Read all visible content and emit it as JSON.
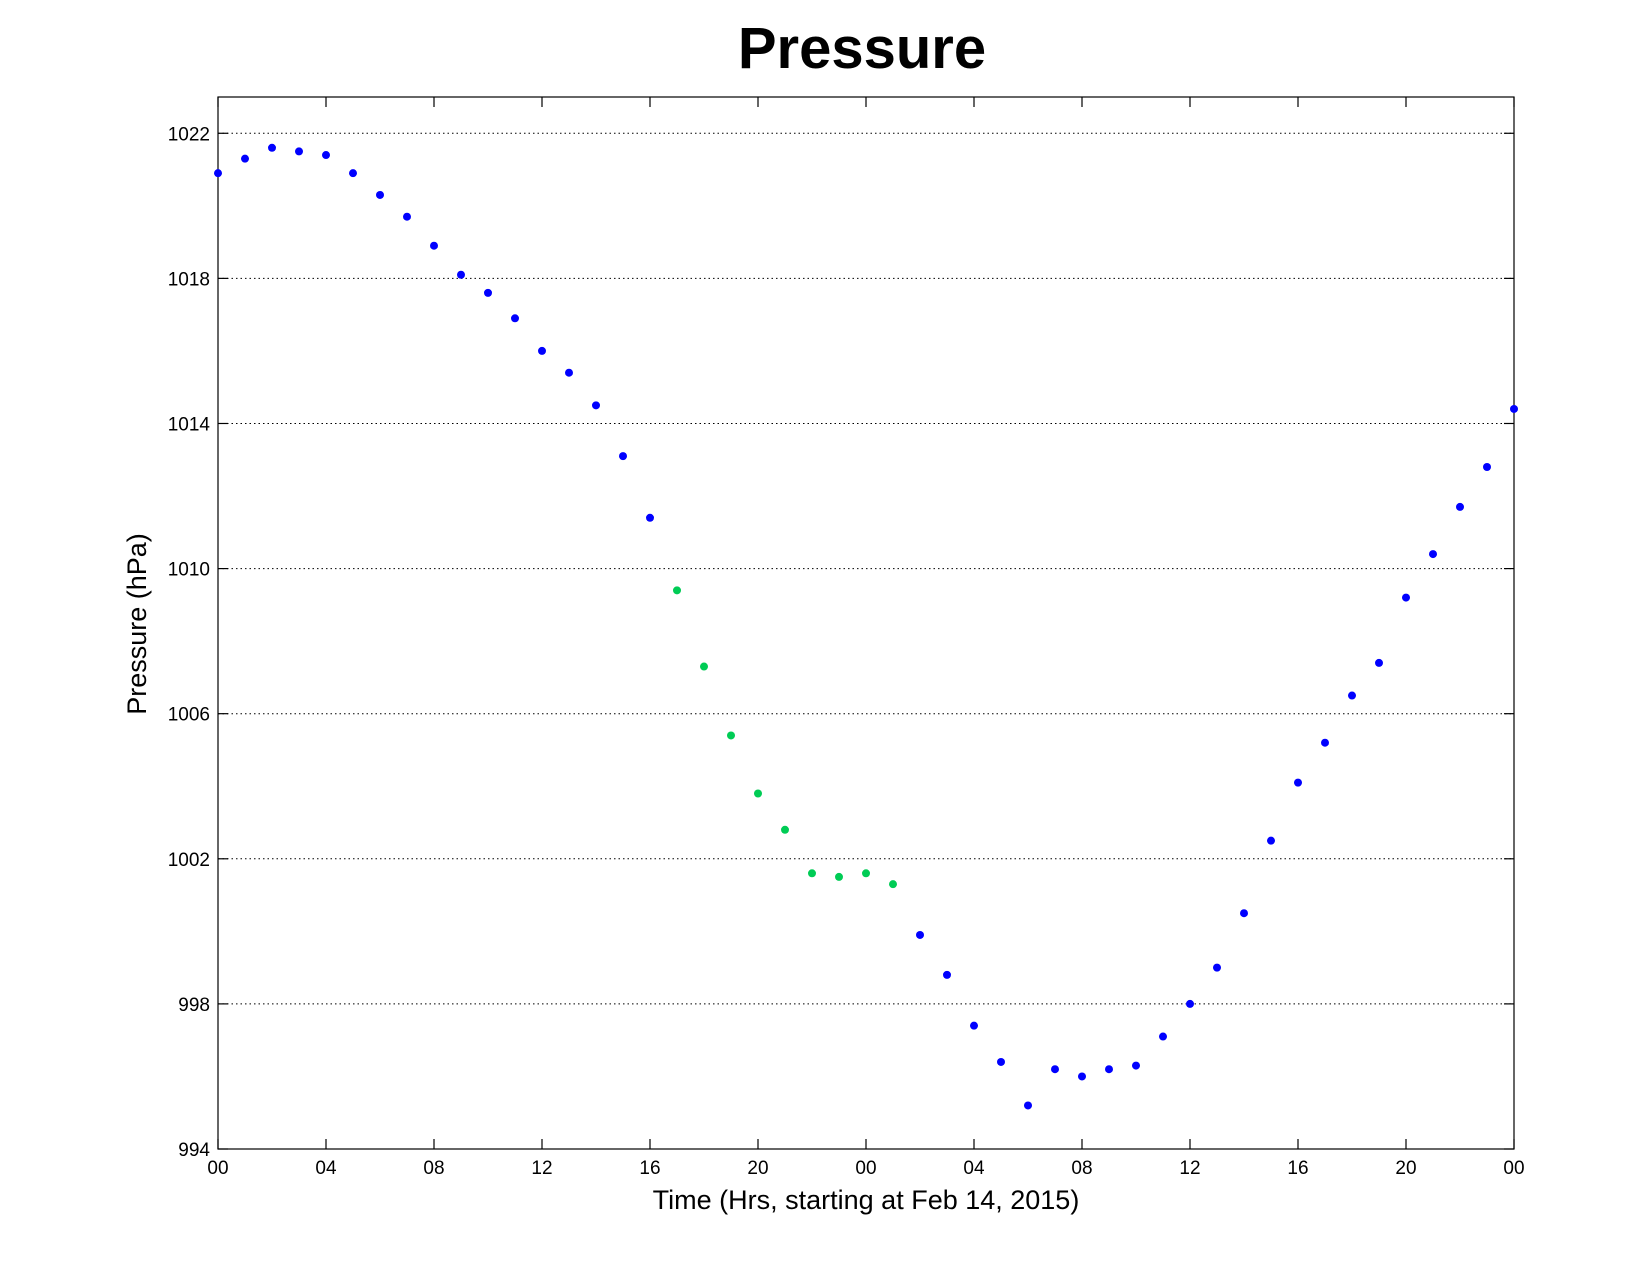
{
  "chart_data": {
    "type": "scatter",
    "title": "Pressure",
    "xlabel": "Time (Hrs, starting at Feb 14, 2015)",
    "ylabel": "Pressure (hPa)",
    "xlim": [
      0,
      48
    ],
    "ylim": [
      994,
      1023
    ],
    "x_ticks": [
      0,
      4,
      8,
      12,
      16,
      20,
      24,
      28,
      32,
      36,
      40,
      44,
      48
    ],
    "x_tick_labels": [
      "00",
      "04",
      "08",
      "12",
      "16",
      "20",
      "00",
      "04",
      "08",
      "12",
      "16",
      "20",
      "00"
    ],
    "y_ticks": [
      994,
      998,
      1002,
      1006,
      1010,
      1014,
      1018,
      1022
    ],
    "y_tick_labels": [
      "994",
      "998",
      "1002",
      "1006",
      "1010",
      "1014",
      "1018",
      "1022"
    ],
    "grid": "horizontal dotted",
    "colors": {
      "blue": "#0000ff",
      "green": "#00cc55"
    },
    "series": [
      {
        "color": "#0000ff",
        "x": [
          0,
          1,
          2,
          3,
          4,
          5,
          6,
          7,
          8,
          9,
          10,
          11,
          12,
          13,
          14,
          15,
          16,
          26,
          27,
          28,
          29,
          30,
          31,
          32,
          33,
          34,
          35,
          36,
          37,
          38,
          39,
          40,
          41,
          42,
          43,
          44,
          45,
          46,
          47,
          48
        ],
        "y": [
          1020.9,
          1021.3,
          1021.6,
          1021.5,
          1021.4,
          1020.9,
          1020.3,
          1019.7,
          1018.9,
          1018.1,
          1017.6,
          1016.9,
          1016.0,
          1015.4,
          1014.5,
          1013.1,
          1011.4,
          999.9,
          998.8,
          997.4,
          996.4,
          995.2,
          996.2,
          996.0,
          996.2,
          996.3,
          997.1,
          998.0,
          999.0,
          1000.5,
          1002.5,
          1004.1,
          1005.2,
          1006.5,
          1007.4,
          1009.2,
          1010.4,
          1011.7,
          1012.8,
          1014.4
        ]
      },
      {
        "color": "#00cc55",
        "x": [
          17,
          18,
          19,
          20,
          21,
          22,
          23,
          24,
          25
        ],
        "y": [
          1009.4,
          1007.3,
          1005.4,
          1003.8,
          1002.8,
          1001.6,
          1001.5,
          1001.6,
          1001.3
        ]
      }
    ]
  }
}
